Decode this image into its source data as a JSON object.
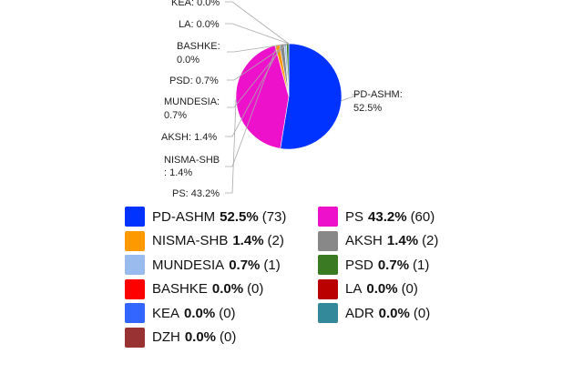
{
  "chart_data": {
    "type": "pie",
    "title": "",
    "slices": [
      {
        "name": "PD-ASHM",
        "pct": 52.5,
        "pct_label": "52.5%",
        "count": "(73)",
        "label": "PD-ASHM:",
        "value_label": "52.5%",
        "color": "#0033ff"
      },
      {
        "name": "PS",
        "pct": 43.2,
        "pct_label": "43.2%",
        "count": "(60)",
        "label": "PS: 43.2%",
        "color": "#ee11cc"
      },
      {
        "name": "NISMA-SHB",
        "pct": 1.4,
        "pct_label": "1.4%",
        "count": "(2)",
        "label": "NISMA-SHB",
        "value_label": ": 1.4%",
        "color": "#ff9900"
      },
      {
        "name": "AKSH",
        "pct": 1.4,
        "pct_label": "1.4%",
        "count": "(2)",
        "label": "AKSH: 1.4%",
        "color": "#888888"
      },
      {
        "name": "MUNDESIA",
        "pct": 0.7,
        "pct_label": "0.7%",
        "count": "(1)",
        "label": "MUNDESIA:",
        "value_label": "0.7%",
        "color": "#99bbee"
      },
      {
        "name": "PSD",
        "pct": 0.7,
        "pct_label": "0.7%",
        "count": "(1)",
        "label": "PSD: 0.7%",
        "color": "#3a7a22"
      },
      {
        "name": "BASHKE",
        "pct": 0.0,
        "pct_label": "0.0%",
        "count": "(0)",
        "label": "BASHKE:",
        "value_label": "0.0%",
        "color": "#ff0000"
      },
      {
        "name": "LA",
        "pct": 0.0,
        "pct_label": "0.0%",
        "count": "(0)",
        "label": "LA: 0.0%",
        "color": "#bb0000"
      },
      {
        "name": "KEA",
        "pct": 0.0,
        "pct_label": "0.0%",
        "count": "(0)",
        "label": "KEA: 0.0%",
        "color": "#3366ff"
      },
      {
        "name": "ADR",
        "pct": 0.0,
        "pct_label": "0.0%",
        "count": "(0)",
        "label": "",
        "color": "#338899"
      },
      {
        "name": "DZH",
        "pct": 0.0,
        "pct_label": "0.0%",
        "count": "(0)",
        "label": "",
        "color": "#993333"
      }
    ]
  }
}
